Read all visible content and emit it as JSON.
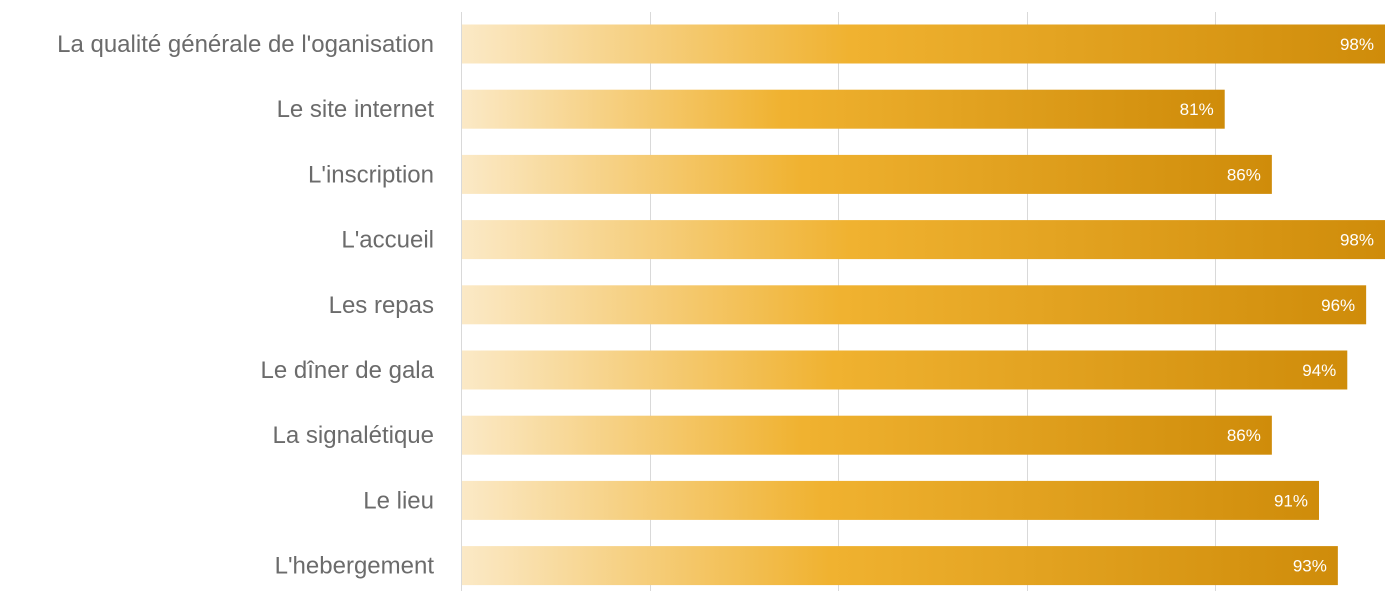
{
  "chart_data": {
    "type": "bar",
    "orientation": "horizontal",
    "title": "",
    "xlabel": "",
    "ylabel": "",
    "categories": [
      "La qualité générale de l'oganisation",
      "Le site internet",
      "L'inscription",
      "L'accueil",
      "Les repas",
      "Le dîner de gala",
      "La signalétique",
      "Le lieu",
      "L'hebergement"
    ],
    "values": [
      98,
      81,
      86,
      98,
      96,
      94,
      86,
      91,
      93
    ],
    "value_labels": [
      "98%",
      "81%",
      "86%",
      "98%",
      "96%",
      "94%",
      "86%",
      "91%",
      "93%"
    ],
    "xlim": [
      0,
      98
    ],
    "grid": true,
    "legend": "none",
    "colors": {
      "bar_start": "#fbe9c6",
      "bar_mid": "#f0b230",
      "bar_end": "#cf8c0a",
      "gridline": "#d9d9d9",
      "category_text": "#6b6b6b",
      "value_text": "#ffffff"
    }
  }
}
